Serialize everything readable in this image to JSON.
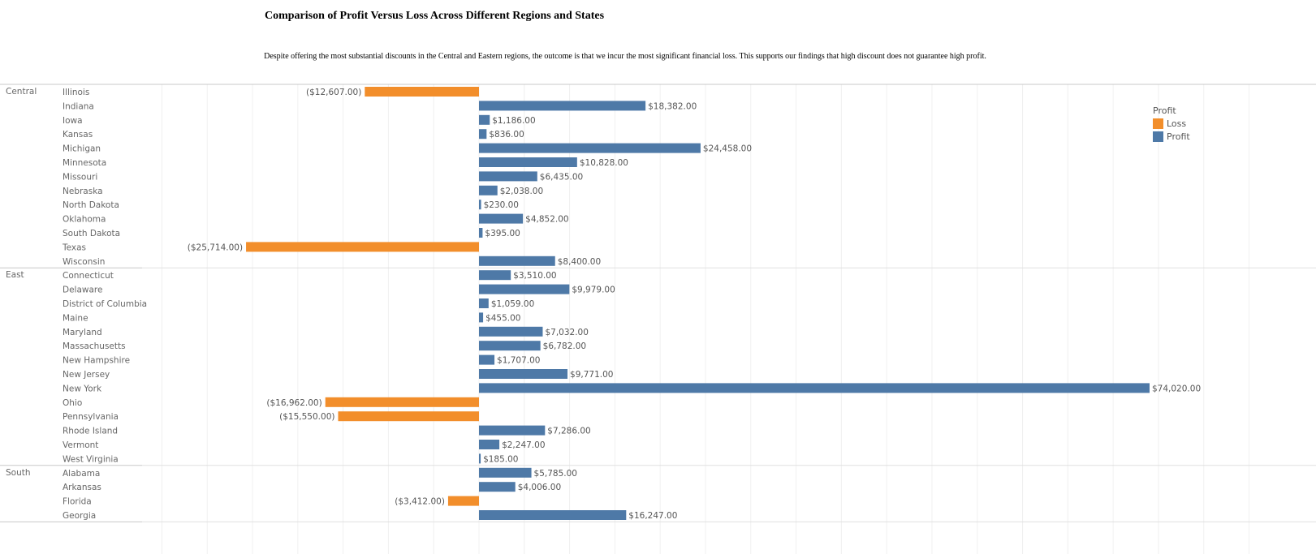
{
  "title": "Comparison of Profit Versus Loss Across Different Regions and States",
  "subtitle": "Despite offering the most substantial discounts in the Central and Eastern regions, the outcome is that we incur the most significant financial loss. This supports our findings that high discount does not guarantee high profit.",
  "legend": {
    "title": "Profit",
    "items": [
      {
        "label": "Loss",
        "color": "#f28e2b"
      },
      {
        "label": "Profit",
        "color": "#4e79a7"
      }
    ]
  },
  "chart_data": {
    "type": "bar",
    "orientation": "horizontal",
    "title": "Comparison of Profit Versus Loss Across Different Regions and States",
    "xlabel": "",
    "ylabel": "",
    "grid": true,
    "legend_position": "top-right",
    "colors": {
      "loss": "#f28e2b",
      "profit": "#4e79a7"
    },
    "groups": [
      {
        "region": "Central",
        "states": [
          {
            "state": "Illinois",
            "value": -12607,
            "label": "($12,607.00)"
          },
          {
            "state": "Indiana",
            "value": 18382,
            "label": "$18,382.00"
          },
          {
            "state": "Iowa",
            "value": 1186,
            "label": "$1,186.00"
          },
          {
            "state": "Kansas",
            "value": 836,
            "label": "$836.00"
          },
          {
            "state": "Michigan",
            "value": 24458,
            "label": "$24,458.00"
          },
          {
            "state": "Minnesota",
            "value": 10828,
            "label": "$10,828.00"
          },
          {
            "state": "Missouri",
            "value": 6435,
            "label": "$6,435.00"
          },
          {
            "state": "Nebraska",
            "value": 2038,
            "label": "$2,038.00"
          },
          {
            "state": "North Dakota",
            "value": 230,
            "label": "$230.00"
          },
          {
            "state": "Oklahoma",
            "value": 4852,
            "label": "$4,852.00"
          },
          {
            "state": "South Dakota",
            "value": 395,
            "label": "$395.00"
          },
          {
            "state": "Texas",
            "value": -25714,
            "label": "($25,714.00)"
          },
          {
            "state": "Wisconsin",
            "value": 8400,
            "label": "$8,400.00"
          }
        ]
      },
      {
        "region": "East",
        "states": [
          {
            "state": "Connecticut",
            "value": 3510,
            "label": "$3,510.00"
          },
          {
            "state": "Delaware",
            "value": 9979,
            "label": "$9,979.00"
          },
          {
            "state": "District of Columbia",
            "value": 1059,
            "label": "$1,059.00"
          },
          {
            "state": "Maine",
            "value": 455,
            "label": "$455.00"
          },
          {
            "state": "Maryland",
            "value": 7032,
            "label": "$7,032.00"
          },
          {
            "state": "Massachusetts",
            "value": 6782,
            "label": "$6,782.00"
          },
          {
            "state": "New Hampshire",
            "value": 1707,
            "label": "$1,707.00"
          },
          {
            "state": "New Jersey",
            "value": 9771,
            "label": "$9,771.00"
          },
          {
            "state": "New York",
            "value": 74020,
            "label": "$74,020.00"
          },
          {
            "state": "Ohio",
            "value": -16962,
            "label": "($16,962.00)"
          },
          {
            "state": "Pennsylvania",
            "value": -15550,
            "label": "($15,550.00)"
          },
          {
            "state": "Rhode Island",
            "value": 7286,
            "label": "$7,286.00"
          },
          {
            "state": "Vermont",
            "value": 2247,
            "label": "$2,247.00"
          },
          {
            "state": "West Virginia",
            "value": 185,
            "label": "$185.00"
          }
        ]
      },
      {
        "region": "South",
        "states": [
          {
            "state": "Alabama",
            "value": 5785,
            "label": "$5,785.00"
          },
          {
            "state": "Arkansas",
            "value": 4006,
            "label": "$4,006.00"
          },
          {
            "state": "Florida",
            "value": -3412,
            "label": "($3,412.00)"
          },
          {
            "state": "Georgia",
            "value": 16247,
            "label": "$16,247.00"
          }
        ]
      }
    ],
    "xlim": [
      -51000,
      88000
    ],
    "tick_step": 5000
  }
}
